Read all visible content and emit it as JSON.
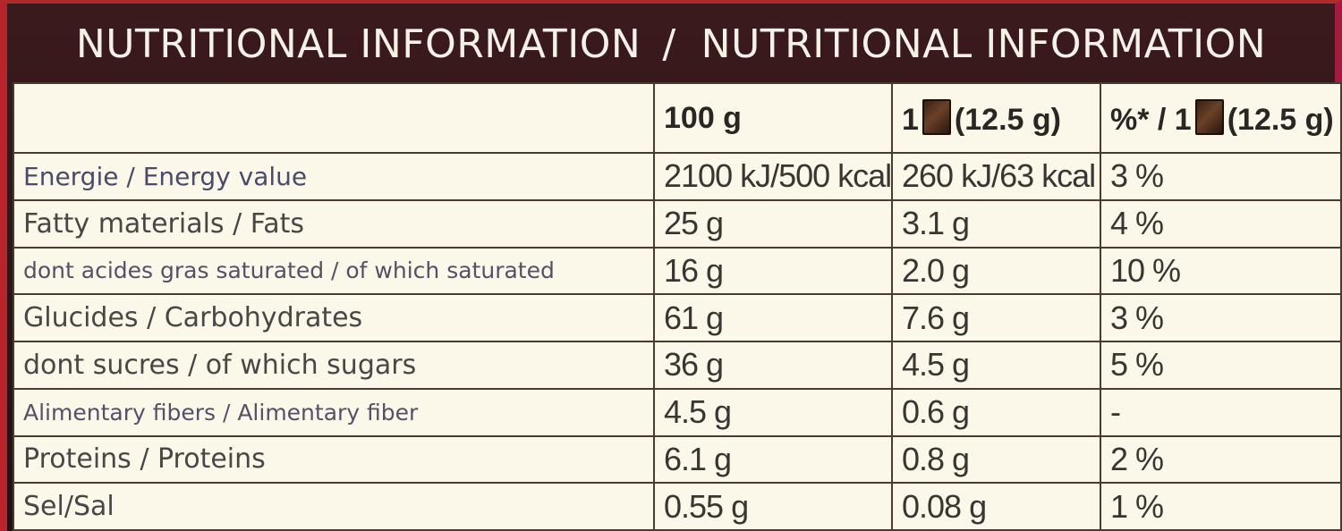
{
  "title": {
    "left": "NUTRITIONAL INFORMATION",
    "separator": "/",
    "right": "NUTRITIONAL INFORMATION"
  },
  "table": {
    "header": {
      "per_100g": "100 g",
      "per_piece_prefix": "1",
      "per_piece_suffix": "(12.5 g)",
      "pct_prefix": "%* / 1",
      "pct_suffix": "(12.5 g)",
      "piece_icon": "chocolate-piece-icon"
    },
    "rows": [
      {
        "label": "Energie / Energy value",
        "per_100g": "2100 kJ/500 kcal",
        "per_piece": "260 kJ/63 kcal",
        "pct": "3 %"
      },
      {
        "label": "Fatty materials / Fats",
        "per_100g": "25 g",
        "per_piece": "3.1 g",
        "pct": "4 %"
      },
      {
        "label": "dont acides gras saturated / of which saturated",
        "per_100g": "16 g",
        "per_piece": "2.0 g",
        "pct": "10 %"
      },
      {
        "label": "Glucides / Carbohydrates",
        "per_100g": "61 g",
        "per_piece": "7.6 g",
        "pct": "3 %"
      },
      {
        "label": "dont sucres / of which sugars",
        "per_100g": "36 g",
        "per_piece": "4.5 g",
        "pct": "5 %"
      },
      {
        "label": "Alimentary fibers / Alimentary fiber",
        "per_100g": "4.5 g",
        "per_piece": "0.6 g",
        "pct": "-"
      },
      {
        "label": "Proteins / Proteins",
        "per_100g": "6.1 g",
        "per_piece": "0.8 g",
        "pct": "2 %"
      },
      {
        "label": "Sel/Sal",
        "per_100g": "0.55 g",
        "per_piece": "0.08 g",
        "pct": "1 %"
      }
    ]
  },
  "colors": {
    "header_band": "#3b1a1d",
    "table_bg": "#fbf8ea",
    "border_left": "#b8242a",
    "border_right": "#a21c3e"
  }
}
